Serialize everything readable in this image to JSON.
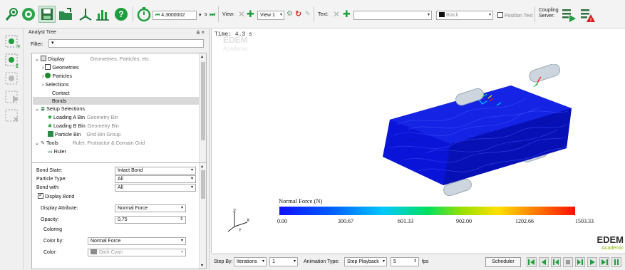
{
  "toolbar": {
    "time_value": "4.3000002",
    "time_unit": "s",
    "view_label": "View:",
    "view_select": "View 1",
    "text_label": "Text:",
    "color_select": "Black",
    "position_text_label": "Position Text",
    "coupling_label_line1": "Coupling",
    "coupling_label_line2": "Server:"
  },
  "panel": {
    "title": "Analyst Tree",
    "controls": "ȧ ×",
    "filter_label": "Filter:"
  },
  "tree": [
    {
      "label": "Display",
      "sub": "Geometries, Particles, etc"
    },
    {
      "label": "Geometries",
      "sub": ""
    },
    {
      "label": "Particles",
      "sub": ""
    },
    {
      "label": "Selections",
      "sub": ""
    },
    {
      "label": "Contact",
      "sub": ""
    },
    {
      "label": "Bonds",
      "sub": ""
    },
    {
      "label": "Setup Selections",
      "sub": ""
    },
    {
      "label": "Loading A Bin",
      "sub": "Geometry Bin"
    },
    {
      "label": "Loading B Bin",
      "sub": "Geometry Bin"
    },
    {
      "label": "Particle Bin",
      "sub": "Grid Bin Group"
    },
    {
      "label": "Tools",
      "sub": "Ruler, Protractor & Domain Grid"
    },
    {
      "label": "Ruler",
      "sub": ""
    }
  ],
  "props": {
    "bond_state_label": "Bond State:",
    "bond_state_value": "Intact Bond",
    "particle_type_label": "Particle Type:",
    "particle_type_value": "All",
    "bond_with_label": "Bond with:",
    "bond_with_value": "All",
    "display_bond_label": "Display Bond",
    "display_attribute_label": "Display Attribute:",
    "display_attribute_value": "Normal Force",
    "opacity_label": "Opacity:",
    "opacity_value": "0,75",
    "coloring_label": "Coloring",
    "color_by_label": "Color by:",
    "color_by_value": "Normal Force",
    "color_label": "Color:",
    "color_value": "Dark Cyan"
  },
  "viewport": {
    "time_text": "Time: 4.3 s",
    "watermark": "EDEM",
    "watermark_sub": "Academic",
    "legend_title": "Normal Force (N)",
    "ticks": [
      "0.00",
      "300.67",
      "601.33",
      "902.00",
      "1202.66",
      "1503.33"
    ],
    "logo": "EDEM",
    "logo_sub": "Academic"
  },
  "bottom": {
    "step_by_label": "Step By:",
    "step_by_value": "Iterations",
    "step_value": "1",
    "anim_type_label": "Animation Type:",
    "anim_type_value": "Step Playback",
    "fps_value": "5",
    "fps_label": "fps",
    "scheduler_label": "Scheduler"
  },
  "colors": {
    "accent_green": "#1e9e3c",
    "particles_blue": "#0a14d8",
    "warning_red": "#d32020"
  }
}
